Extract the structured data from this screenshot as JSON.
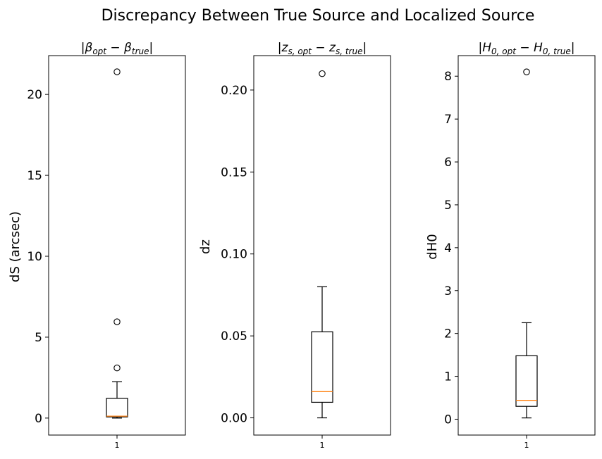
{
  "figure": {
    "suptitle": "Discrepancy Between True Source and Localized Source"
  },
  "chart_data": [
    {
      "type": "box",
      "title": "|β_opt − β_true|",
      "title_main": "|β",
      "title_sub": "opt",
      "title_mid": " − β",
      "title_sub2": "true",
      "title_end": "|",
      "xlabel": "",
      "ylabel": "dS (arcsec)",
      "ylim": [
        -1.05,
        22.4
      ],
      "yticks": [
        0,
        5,
        10,
        15,
        20
      ],
      "ytick_labels": [
        "0",
        "5",
        "10",
        "15",
        "20"
      ],
      "categories": [
        "1"
      ],
      "box": {
        "whislo": 0.0,
        "q1": 0.07,
        "median": 0.12,
        "q3": 1.22,
        "whishi": 2.25
      },
      "outliers": [
        3.1,
        5.95,
        21.4
      ]
    },
    {
      "type": "box",
      "title": "|z_s,opt − z_s,true|",
      "title_main": "|z",
      "title_sub": "s, opt",
      "title_mid": " − z",
      "title_sub2": "s, true",
      "title_end": "|",
      "xlabel": "",
      "ylabel": "dz",
      "ylim": [
        -0.0105,
        0.221
      ],
      "yticks": [
        0.0,
        0.05,
        0.1,
        0.15,
        0.2
      ],
      "ytick_labels": [
        "0.00",
        "0.05",
        "0.10",
        "0.15",
        "0.20"
      ],
      "categories": [
        "1"
      ],
      "box": {
        "whislo": 0.0,
        "q1": 0.0095,
        "median": 0.016,
        "q3": 0.0525,
        "whishi": 0.08
      },
      "outliers": [
        0.21
      ]
    },
    {
      "type": "box",
      "title": "|H_0,opt − H_0,true|",
      "title_main": "|H",
      "title_sub": "0, opt",
      "title_mid": " − H",
      "title_sub2": "0, true",
      "title_end": "|",
      "xlabel": "",
      "ylabel": "dH0",
      "ylim": [
        -0.37,
        8.48
      ],
      "yticks": [
        0,
        1,
        2,
        3,
        4,
        5,
        6,
        7,
        8
      ],
      "ytick_labels": [
        "0",
        "1",
        "2",
        "3",
        "4",
        "5",
        "6",
        "7",
        "8"
      ],
      "categories": [
        "1"
      ],
      "box": {
        "whislo": 0.03,
        "q1": 0.3,
        "median": 0.44,
        "q3": 1.48,
        "whishi": 2.25
      },
      "outliers": [
        8.1
      ]
    }
  ]
}
